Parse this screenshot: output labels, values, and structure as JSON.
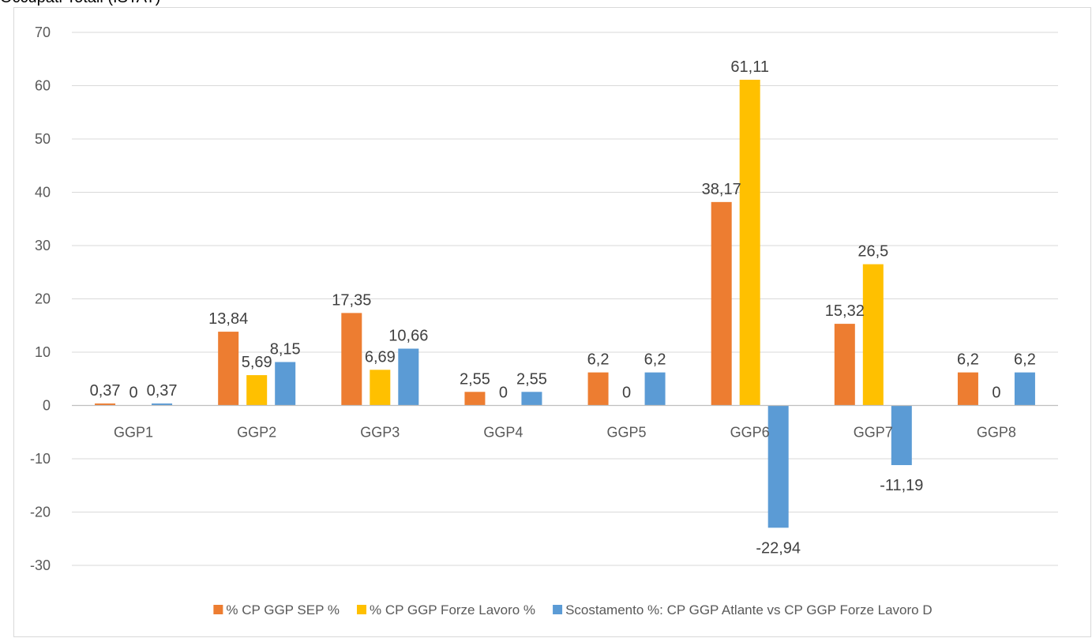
{
  "title": "Occupati Totali (ISTAT)",
  "chart_data": {
    "type": "bar",
    "categories": [
      "GGP1",
      "GGP2",
      "GGP3",
      "GGP4",
      "GGP5",
      "GGP6",
      "GGP7",
      "GGP8"
    ],
    "series": [
      {
        "name": "% CP GGP SEP %",
        "color": "#ed7d31",
        "values": [
          0.37,
          13.84,
          17.35,
          2.55,
          6.2,
          38.17,
          15.32,
          6.2
        ],
        "labels": [
          "0,37",
          "13,84",
          "17,35",
          "2,55",
          "6,2",
          "38,17",
          "15,32",
          "6,2"
        ]
      },
      {
        "name": "% CP GGP Forze Lavoro %",
        "color": "#ffc000",
        "values": [
          0,
          5.69,
          6.69,
          0,
          0,
          61.11,
          26.5,
          0
        ],
        "labels": [
          "0",
          "5,69",
          "6,69",
          "0",
          "0",
          "61,11",
          "26,5",
          "0"
        ]
      },
      {
        "name": "Scostamento %: CP GGP Atlante vs CP GGP Forze Lavoro D",
        "color": "#5b9bd5",
        "values": [
          0.37,
          8.15,
          10.66,
          2.55,
          6.2,
          -22.94,
          -11.19,
          6.2
        ],
        "labels": [
          "0,37",
          "8,15",
          "10,66",
          "2,55",
          "6,2",
          "-22,94",
          "-11,19",
          "6,2"
        ]
      }
    ],
    "ylim": [
      -30,
      70
    ],
    "yticks": [
      70,
      60,
      50,
      40,
      30,
      20,
      10,
      0,
      -10,
      -20,
      -30
    ],
    "grid": true,
    "legend": "bottom"
  }
}
